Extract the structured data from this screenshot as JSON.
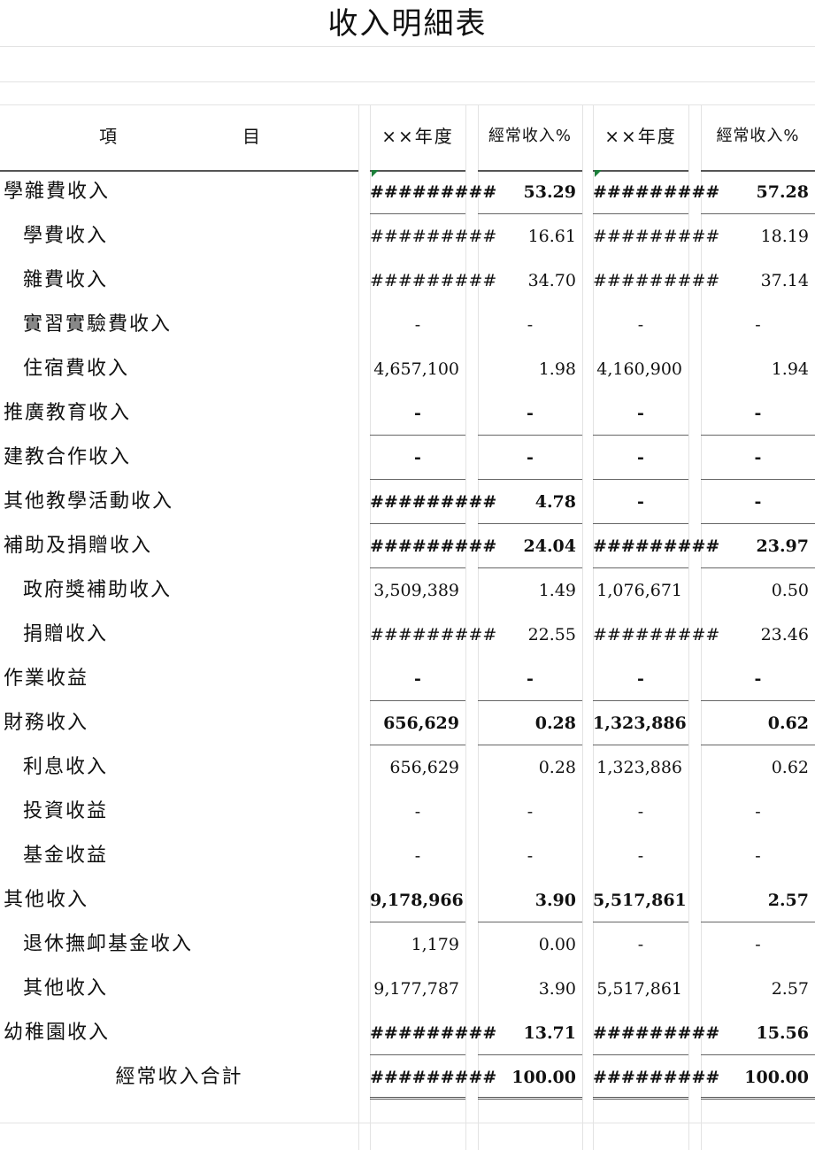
{
  "title": "收入明細表",
  "headers": {
    "item_left": "項",
    "item_right": "目",
    "year1": "××年度",
    "pct1": "經常收入%",
    "year2": "××年度",
    "pct2": "經常收入%"
  },
  "rows": [
    {
      "label": "學雜費收入",
      "v1": "#########",
      "p1": "53.29",
      "v2": "#########",
      "p2": "57.28"
    },
    {
      "label": "學費收入",
      "v1": "#########",
      "p1": "16.61",
      "v2": "#########",
      "p2": "18.19"
    },
    {
      "label": "雜費收入",
      "v1": "#########",
      "p1": "34.70",
      "v2": "#########",
      "p2": "37.14"
    },
    {
      "label": "實習實驗費收入",
      "v1": "-",
      "p1": "-",
      "v2": "-",
      "p2": "-"
    },
    {
      "label": "住宿費收入",
      "v1": "4,657,100",
      "p1": "1.98",
      "v2": "4,160,900",
      "p2": "1.94"
    },
    {
      "label": "推廣教育收入",
      "v1": "-",
      "p1": "-",
      "v2": "-",
      "p2": "-"
    },
    {
      "label": "建教合作收入",
      "v1": "-",
      "p1": "-",
      "v2": "-",
      "p2": "-"
    },
    {
      "label": "其他教學活動收入",
      "v1": "#########",
      "p1": "4.78",
      "v2": "-",
      "p2": "-"
    },
    {
      "label": "補助及捐贈收入",
      "v1": "#########",
      "p1": "24.04",
      "v2": "#########",
      "p2": "23.97"
    },
    {
      "label": "政府獎補助收入",
      "v1": "3,509,389",
      "p1": "1.49",
      "v2": "1,076,671",
      "p2": "0.50"
    },
    {
      "label": "捐贈收入",
      "v1": "#########",
      "p1": "22.55",
      "v2": "#########",
      "p2": "23.46"
    },
    {
      "label": "作業收益",
      "v1": "-",
      "p1": "-",
      "v2": "-",
      "p2": "-"
    },
    {
      "label": "財務收入",
      "v1": "656,629",
      "p1": "0.28",
      "v2": "1,323,886",
      "p2": "0.62"
    },
    {
      "label": "利息收入",
      "v1": "656,629",
      "p1": "0.28",
      "v2": "1,323,886",
      "p2": "0.62"
    },
    {
      "label": "投資收益",
      "v1": "-",
      "p1": "-",
      "v2": "-",
      "p2": "-"
    },
    {
      "label": "基金收益",
      "v1": "-",
      "p1": "-",
      "v2": "-",
      "p2": "-"
    },
    {
      "label": "其他收入",
      "v1": "9,178,966",
      "p1": "3.90",
      "v2": "5,517,861",
      "p2": "2.57"
    },
    {
      "label": "退休撫卹基金收入",
      "v1": "1,179",
      "p1": "0.00",
      "v2": "-",
      "p2": "-"
    },
    {
      "label": "其他收入",
      "v1": "9,177,787",
      "p1": "3.90",
      "v2": "5,517,861",
      "p2": "2.57"
    },
    {
      "label": "幼稚園收入",
      "v1": "#########",
      "p1": "13.71",
      "v2": "#########",
      "p2": "15.56"
    },
    {
      "label": "經常收入合計",
      "v1": "#########",
      "p1": "100.00",
      "v2": "#########",
      "p2": "100.00"
    }
  ],
  "colors": {
    "corner_triangle": "#1c7f3a",
    "gridline": "#e3e3e3"
  }
}
